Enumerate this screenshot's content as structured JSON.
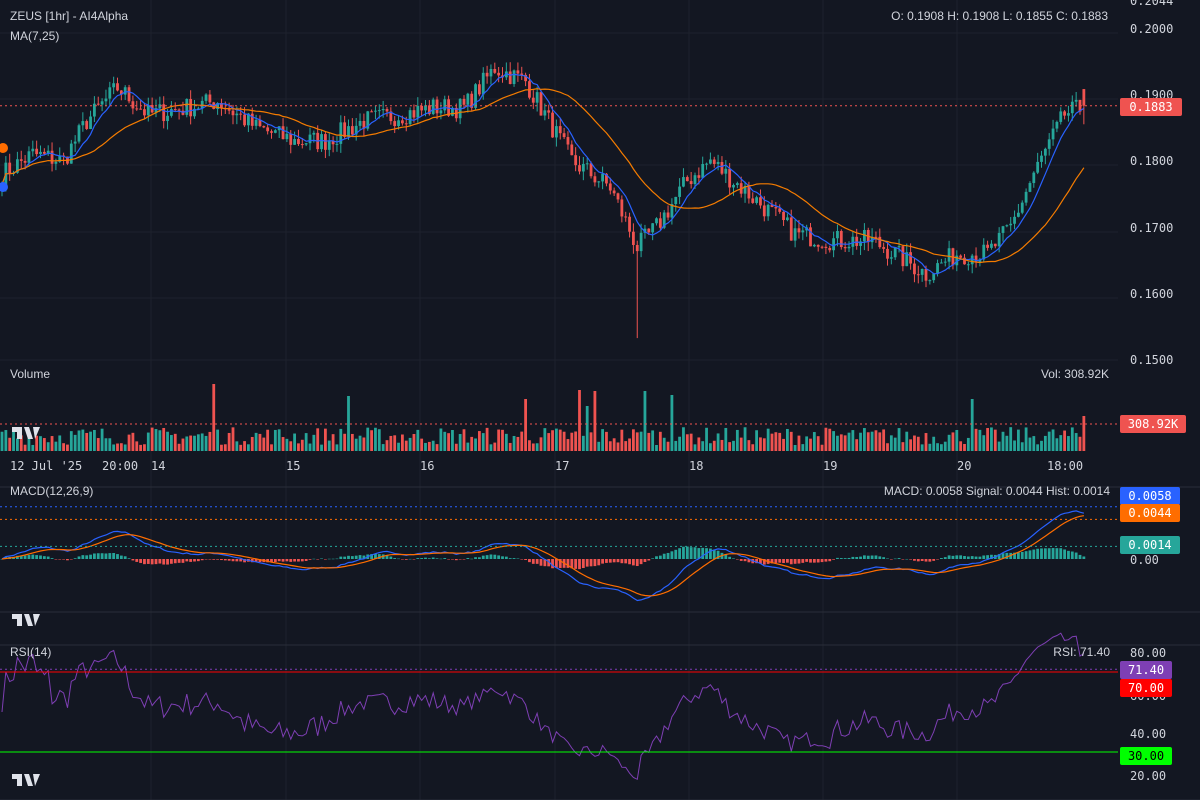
{
  "header": {
    "title": "ZEUS [1hr] - AI4Alpha",
    "ma_label": "MA(7,25)",
    "ohlc_text": "O: 0.1908 H: 0.1908 L: 0.1855 C: 0.1883"
  },
  "volume_panel": {
    "label": "Volume",
    "readout": "Vol: 308.92K",
    "tag": "308.92K"
  },
  "macd_panel": {
    "label": "MACD(12,26,9)",
    "readout": "MACD: 0.0058 Signal: 0.0044 Hist: 0.0014",
    "tag_macd": "0.0058",
    "tag_signal": "0.0044",
    "tag_hist": "0.0014",
    "zero_label": "0.00"
  },
  "rsi_panel": {
    "label": "RSI(14)",
    "readout": "RSI: 71.40",
    "tag_rsi": "71.40",
    "tag_70": "70.00",
    "tag_30": "30.00",
    "ticks": [
      "80.00",
      "60.00",
      "40.00",
      "20.00"
    ]
  },
  "price_axis": {
    "ticks": [
      "0.2044",
      "0.2000",
      "0.1900",
      "0.1800",
      "0.1700",
      "0.1600",
      "0.1500"
    ],
    "last_price_tag": "0.1883"
  },
  "time_axis": {
    "labels": [
      "12 Jul '25",
      "20:00",
      "14",
      "15",
      "16",
      "17",
      "18",
      "19",
      "20",
      "18:00"
    ]
  },
  "colors": {
    "background": "#131722",
    "up": "#26a69a",
    "down": "#ef5350",
    "ma7": "#2962ff",
    "ma25": "#f57c00",
    "rsi": "#7e3fb4",
    "overbought": "#ff0000",
    "oversold": "#00ff00",
    "macd": "#2962ff",
    "signal": "#ff6d00"
  },
  "chart_data": {
    "type": "candlestick",
    "symbol": "ZEUS",
    "interval": "1hr",
    "price_range": [
      0.15,
      0.2044
    ],
    "anchors": [
      [
        0,
        0.178
      ],
      [
        8,
        0.181
      ],
      [
        16,
        0.18
      ],
      [
        22,
        0.186
      ],
      [
        30,
        0.191
      ],
      [
        38,
        0.187
      ],
      [
        48,
        0.188
      ],
      [
        56,
        0.189
      ],
      [
        66,
        0.185
      ],
      [
        76,
        0.183
      ],
      [
        84,
        0.183
      ],
      [
        94,
        0.186
      ],
      [
        104,
        0.187
      ],
      [
        112,
        0.188
      ],
      [
        120,
        0.188
      ],
      [
        128,
        0.194
      ],
      [
        136,
        0.192
      ],
      [
        140,
        0.188
      ],
      [
        148,
        0.18
      ],
      [
        158,
        0.176
      ],
      [
        165,
        0.167
      ],
      [
        170,
        0.17
      ],
      [
        178,
        0.177
      ],
      [
        184,
        0.18
      ],
      [
        194,
        0.175
      ],
      [
        206,
        0.169
      ],
      [
        216,
        0.168
      ],
      [
        226,
        0.168
      ],
      [
        232,
        0.166
      ],
      [
        240,
        0.163
      ],
      [
        248,
        0.166
      ],
      [
        256,
        0.166
      ],
      [
        262,
        0.17
      ],
      [
        268,
        0.178
      ],
      [
        276,
        0.187
      ],
      [
        282,
        0.1883
      ]
    ],
    "candle_count": 282,
    "last": {
      "open": 0.1908,
      "high": 0.1908,
      "low": 0.1855,
      "close": 0.1883,
      "volume": "308.92K"
    },
    "indicators": {
      "ma": [
        7,
        25
      ],
      "macd": {
        "fast": 12,
        "slow": 26,
        "signal": 9,
        "macd": 0.0058,
        "signal_value": 0.0044,
        "hist": 0.0014
      },
      "rsi": {
        "period": 14,
        "value": 71.4,
        "overbought": 70,
        "oversold": 30
      }
    }
  }
}
